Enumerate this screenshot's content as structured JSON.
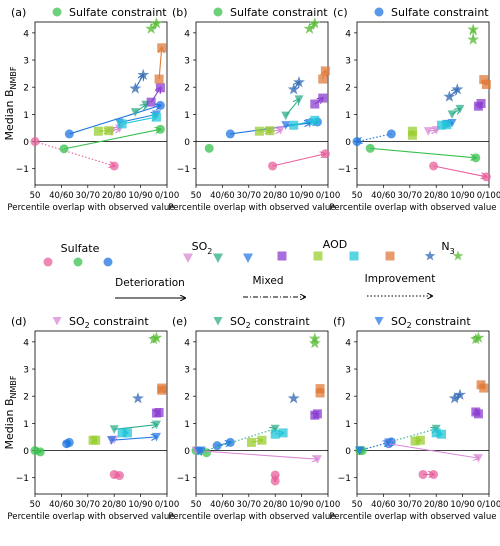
{
  "ylabel_main": "Median B",
  "ylabel_sub": "NMBF",
  "xlabel": "Percentile overlap with observed value",
  "xticks": [
    "50",
    "40/60",
    "30/70",
    "20/80",
    "10/90",
    "0/100"
  ],
  "yticks": [
    "4",
    "3",
    "2",
    "1",
    "0",
    "−1"
  ],
  "colors": {
    "sulfate": [
      "#e8609c",
      "#39c24f",
      "#1f77e0"
    ],
    "so2": [
      "#d98ad6",
      "#2eae8a",
      "#2b7be6"
    ],
    "aod": [
      "#8b3fcf",
      "#9acd32",
      "#22c6d8",
      "#e07b39"
    ],
    "n3": [
      "#3a6fb8",
      "#5fbf3f"
    ]
  },
  "legend": {
    "sulfate_label": "Sulfate",
    "so2_label": "SO",
    "so2_sub": "2",
    "aod_label": "AOD",
    "n3_label": "N",
    "n3_sub": "3",
    "deterioration": "Deterioration",
    "mixed": "Mixed",
    "improvement": "Improvement"
  },
  "chart_data": [
    {
      "label": "(a)",
      "title": "Sulfate constraint",
      "marker": "circle",
      "marker_color": "#39c24f",
      "type": "scatter",
      "ylim": [
        -1.6,
        4.4
      ],
      "xlim": [
        50,
        100
      ],
      "arrows": [
        {
          "kind": "circle",
          "color": "#e8609c",
          "x0": 50,
          "y0": 0,
          "x1": 80,
          "y1": -0.9,
          "style": "dotted"
        },
        {
          "kind": "circle",
          "color": "#39c24f",
          "x0": 61,
          "y0": -0.27,
          "x1": 97.5,
          "y1": 0.45,
          "style": "solid"
        },
        {
          "kind": "circle",
          "color": "#1f77e0",
          "x0": 63,
          "y0": 0.28,
          "x1": 97.5,
          "y1": 1.33,
          "style": "solid"
        },
        {
          "kind": "tri",
          "color": "#d98ad6",
          "x0": 79,
          "y0": 0.38,
          "x1": 82,
          "y1": 0.48,
          "style": "solid"
        },
        {
          "kind": "tri",
          "color": "#2eae8a",
          "x0": 88,
          "y0": 1.08,
          "x1": 92,
          "y1": 1.35,
          "style": "solid"
        },
        {
          "kind": "tri",
          "color": "#2b7be6",
          "x0": 82,
          "y0": 0.7,
          "x1": 96,
          "y1": 1.0,
          "style": "solid"
        },
        {
          "kind": "square",
          "color": "#8b3fcf",
          "x0": 94,
          "y0": 1.45,
          "x1": 97.5,
          "y1": 1.98,
          "style": "solid"
        },
        {
          "kind": "square",
          "color": "#9acd32",
          "x0": 74,
          "y0": 0.38,
          "x1": 78,
          "y1": 0.4,
          "style": "solid"
        },
        {
          "kind": "square",
          "color": "#22c6d8",
          "x0": 83,
          "y0": 0.65,
          "x1": 96,
          "y1": 0.9,
          "style": "solid"
        },
        {
          "kind": "square",
          "color": "#e07b39",
          "x0": 97,
          "y0": 2.3,
          "x1": 98,
          "y1": 3.45,
          "style": "solid"
        },
        {
          "kind": "star",
          "color": "#3a6fb8",
          "x0": 88,
          "y0": 1.95,
          "x1": 91,
          "y1": 2.45,
          "style": "solid"
        },
        {
          "kind": "star",
          "color": "#5fbf3f",
          "x0": 94,
          "y0": 4.15,
          "x1": 96,
          "y1": 4.35,
          "style": "solid"
        }
      ]
    },
    {
      "label": "(b)",
      "title": "Sulfate constraint",
      "marker": "circle",
      "marker_color": "#39c24f",
      "type": "scatter",
      "ylim": [
        -1.6,
        4.4
      ],
      "xlim": [
        50,
        100
      ],
      "arrows": [
        {
          "kind": "circle",
          "color": "#e8609c",
          "x0": 79,
          "y0": -0.9,
          "x1": 99,
          "y1": -0.45,
          "style": "solid"
        },
        {
          "kind": "circle",
          "color": "#39c24f",
          "x0": 55,
          "y0": -0.25,
          "x1": 55,
          "y1": -0.25,
          "style": "none"
        },
        {
          "kind": "circle",
          "color": "#1f77e0",
          "x0": 63,
          "y0": 0.28,
          "x1": 96,
          "y1": 0.72,
          "style": "solid"
        },
        {
          "kind": "tri",
          "color": "#d98ad6",
          "x0": 78,
          "y0": 0.38,
          "x1": 82,
          "y1": 0.42,
          "style": "solid"
        },
        {
          "kind": "tri",
          "color": "#2eae8a",
          "x0": 84,
          "y0": 0.95,
          "x1": 89,
          "y1": 1.55,
          "style": "solid"
        },
        {
          "kind": "tri",
          "color": "#2b7be6",
          "x0": 84,
          "y0": 0.6,
          "x1": 93,
          "y1": 0.68,
          "style": "solid"
        },
        {
          "kind": "square",
          "color": "#8b3fcf",
          "x0": 95,
          "y0": 1.38,
          "x1": 98,
          "y1": 1.6,
          "style": "solid"
        },
        {
          "kind": "square",
          "color": "#9acd32",
          "x0": 74,
          "y0": 0.38,
          "x1": 78,
          "y1": 0.4,
          "style": "solid"
        },
        {
          "kind": "square",
          "color": "#22c6d8",
          "x0": 87,
          "y0": 0.6,
          "x1": 95,
          "y1": 0.78,
          "style": "solid"
        },
        {
          "kind": "square",
          "color": "#e07b39",
          "x0": 98,
          "y0": 2.3,
          "x1": 99,
          "y1": 2.6,
          "style": "solid"
        },
        {
          "kind": "star",
          "color": "#3a6fb8",
          "x0": 87,
          "y0": 1.92,
          "x1": 89,
          "y1": 2.18,
          "style": "solid"
        },
        {
          "kind": "star",
          "color": "#5fbf3f",
          "x0": 93,
          "y0": 4.15,
          "x1": 95,
          "y1": 4.35,
          "style": "solid"
        }
      ]
    },
    {
      "label": "(c)",
      "title": "Sulfate constraint",
      "marker": "circle",
      "marker_color": "#1f77e0",
      "type": "scatter",
      "ylim": [
        -1.6,
        4.4
      ],
      "xlim": [
        50,
        100
      ],
      "arrows": [
        {
          "kind": "circle",
          "color": "#e8609c",
          "x0": 79,
          "y0": -0.9,
          "x1": 99,
          "y1": -1.3,
          "style": "solid"
        },
        {
          "kind": "circle",
          "color": "#39c24f",
          "x0": 55,
          "y0": -0.25,
          "x1": 95,
          "y1": -0.6,
          "style": "solid"
        },
        {
          "kind": "circle",
          "color": "#1f77e0",
          "x0": 63,
          "y0": 0.28,
          "x1": 50,
          "y1": 0.0,
          "style": "dotted"
        },
        {
          "kind": "tri",
          "color": "#d98ad6",
          "x0": 77,
          "y0": 0.38,
          "x1": 80,
          "y1": 0.42,
          "style": "solid"
        },
        {
          "kind": "tri",
          "color": "#2eae8a",
          "x0": 86,
          "y0": 1.0,
          "x1": 89,
          "y1": 1.2,
          "style": "solid"
        },
        {
          "kind": "tri",
          "color": "#2b7be6",
          "x0": 84,
          "y0": 0.65,
          "x1": 86,
          "y1": 0.68,
          "style": "solid"
        },
        {
          "kind": "square",
          "color": "#8b3fcf",
          "x0": 96,
          "y0": 1.3,
          "x1": 97,
          "y1": 1.4,
          "style": "solid"
        },
        {
          "kind": "square",
          "color": "#9acd32",
          "x0": 71,
          "y0": 0.23,
          "x1": 71,
          "y1": 0.38,
          "style": "solid"
        },
        {
          "kind": "square",
          "color": "#22c6d8",
          "x0": 82,
          "y0": 0.6,
          "x1": 84,
          "y1": 0.62,
          "style": "solid"
        },
        {
          "kind": "square",
          "color": "#e07b39",
          "x0": 98,
          "y0": 2.28,
          "x1": 99,
          "y1": 2.1,
          "style": "solid"
        },
        {
          "kind": "star",
          "color": "#3a6fb8",
          "x0": 85,
          "y0": 1.65,
          "x1": 88,
          "y1": 1.92,
          "style": "solid"
        },
        {
          "kind": "star",
          "color": "#5fbf3f",
          "x0": 94,
          "y0": 3.75,
          "x1": 94,
          "y1": 4.12,
          "style": "solid"
        }
      ]
    },
    {
      "label": "(d)",
      "title": "SO constraint",
      "title_sub": "2",
      "marker": "tri",
      "marker_color": "#d98ad6",
      "type": "scatter",
      "ylim": [
        -1.6,
        4.4
      ],
      "xlim": [
        50,
        100
      ],
      "arrows": [
        {
          "kind": "circle",
          "color": "#e8609c",
          "x0": 80,
          "y0": -0.88,
          "x1": 82,
          "y1": -0.92,
          "style": "solid"
        },
        {
          "kind": "circle",
          "color": "#39c24f",
          "x0": 50,
          "y0": 0.0,
          "x1": 52,
          "y1": -0.05,
          "style": "solid"
        },
        {
          "kind": "circle",
          "color": "#1f77e0",
          "x0": 62,
          "y0": 0.25,
          "x1": 63,
          "y1": 0.3,
          "style": "solid"
        },
        {
          "kind": "tri",
          "color": "#d98ad6",
          "x0": 79,
          "y0": 0.38,
          "x1": 80,
          "y1": 0.4,
          "style": "solid"
        },
        {
          "kind": "tri",
          "color": "#2eae8a",
          "x0": 80,
          "y0": 0.78,
          "x1": 96,
          "y1": 0.95,
          "style": "solid"
        },
        {
          "kind": "tri",
          "color": "#2b7be6",
          "x0": 79,
          "y0": 0.38,
          "x1": 96,
          "y1": 0.5,
          "style": "solid"
        },
        {
          "kind": "square",
          "color": "#8b3fcf",
          "x0": 96,
          "y0": 1.38,
          "x1": 97,
          "y1": 1.4,
          "style": "solid"
        },
        {
          "kind": "square",
          "color": "#9acd32",
          "x0": 72,
          "y0": 0.38,
          "x1": 73,
          "y1": 0.38,
          "style": "solid"
        },
        {
          "kind": "square",
          "color": "#22c6d8",
          "x0": 83,
          "y0": 0.65,
          "x1": 85,
          "y1": 0.65,
          "style": "solid"
        },
        {
          "kind": "square",
          "color": "#e07b39",
          "x0": 98,
          "y0": 2.22,
          "x1": 98,
          "y1": 2.3,
          "style": "solid"
        },
        {
          "kind": "star",
          "color": "#3a6fb8",
          "x0": 89,
          "y0": 1.92,
          "x1": 89,
          "y1": 1.92,
          "style": "none"
        },
        {
          "kind": "star",
          "color": "#5fbf3f",
          "x0": 95,
          "y0": 4.1,
          "x1": 96,
          "y1": 4.15,
          "style": "solid"
        }
      ]
    },
    {
      "label": "(e)",
      "title": "SO constraint",
      "title_sub": "2",
      "marker": "tri",
      "marker_color": "#2eae8a",
      "type": "scatter",
      "ylim": [
        -1.6,
        4.4
      ],
      "xlim": [
        50,
        100
      ],
      "arrows": [
        {
          "kind": "circle",
          "color": "#e8609c",
          "x0": 80,
          "y0": -0.9,
          "x1": 80,
          "y1": -1.12,
          "style": "solid"
        },
        {
          "kind": "circle",
          "color": "#39c24f",
          "x0": 54,
          "y0": -0.08,
          "x1": 50,
          "y1": 0.0,
          "style": "dotted"
        },
        {
          "kind": "circle",
          "color": "#1f77e0",
          "x0": 58,
          "y0": 0.18,
          "x1": 63,
          "y1": 0.3,
          "style": "solid"
        },
        {
          "kind": "tri",
          "color": "#d98ad6",
          "x0": 50,
          "y0": 0.0,
          "x1": 96,
          "y1": -0.32,
          "style": "solid"
        },
        {
          "kind": "tri",
          "color": "#2eae8a",
          "x0": 52,
          "y0": -0.05,
          "x1": 80,
          "y1": 0.8,
          "style": "dotted"
        },
        {
          "kind": "tri",
          "color": "#2b7be6",
          "x0": 51,
          "y0": -0.02,
          "x1": 52,
          "y1": 0.0,
          "style": "solid"
        },
        {
          "kind": "square",
          "color": "#8b3fcf",
          "x0": 95,
          "y0": 1.3,
          "x1": 96,
          "y1": 1.35,
          "style": "solid"
        },
        {
          "kind": "square",
          "color": "#9acd32",
          "x0": 71,
          "y0": 0.3,
          "x1": 75,
          "y1": 0.38,
          "style": "solid"
        },
        {
          "kind": "square",
          "color": "#22c6d8",
          "x0": 80,
          "y0": 0.6,
          "x1": 83,
          "y1": 0.65,
          "style": "solid"
        },
        {
          "kind": "square",
          "color": "#e07b39",
          "x0": 97,
          "y0": 2.12,
          "x1": 97,
          "y1": 2.28,
          "style": "solid"
        },
        {
          "kind": "star",
          "color": "#3a6fb8",
          "x0": 87,
          "y0": 1.92,
          "x1": 87,
          "y1": 1.92,
          "style": "none"
        },
        {
          "kind": "star",
          "color": "#5fbf3f",
          "x0": 95,
          "y0": 3.95,
          "x1": 95,
          "y1": 4.12,
          "style": "solid"
        }
      ]
    },
    {
      "label": "(f)",
      "title": "SO constraint",
      "title_sub": "2",
      "marker": "tri",
      "marker_color": "#2b7be6",
      "type": "scatter",
      "ylim": [
        -1.6,
        4.4
      ],
      "xlim": [
        50,
        100
      ],
      "arrows": [
        {
          "kind": "circle",
          "color": "#e8609c",
          "x0": 75,
          "y0": -0.88,
          "x1": 79,
          "y1": -0.88,
          "style": "solid"
        },
        {
          "kind": "circle",
          "color": "#39c24f",
          "x0": 51,
          "y0": 0.0,
          "x1": 52,
          "y1": 0.0,
          "style": "solid"
        },
        {
          "kind": "circle",
          "color": "#1f77e0",
          "x0": 62,
          "y0": 0.25,
          "x1": 63,
          "y1": 0.32,
          "style": "solid"
        },
        {
          "kind": "tri",
          "color": "#d98ad6",
          "x0": 62,
          "y0": 0.25,
          "x1": 96,
          "y1": -0.28,
          "style": "solid"
        },
        {
          "kind": "tri",
          "color": "#2eae8a",
          "x0": 51,
          "y0": 0.0,
          "x1": 80,
          "y1": 0.8,
          "style": "dotted"
        },
        {
          "kind": "tri",
          "color": "#2b7be6",
          "x0": 51,
          "y0": 0.0,
          "x1": 62,
          "y1": 0.3,
          "style": "dotted"
        },
        {
          "kind": "square",
          "color": "#8b3fcf",
          "x0": 95,
          "y0": 1.42,
          "x1": 96,
          "y1": 1.35,
          "style": "solid"
        },
        {
          "kind": "square",
          "color": "#9acd32",
          "x0": 72,
          "y0": 0.35,
          "x1": 74,
          "y1": 0.38,
          "style": "solid"
        },
        {
          "kind": "square",
          "color": "#22c6d8",
          "x0": 80,
          "y0": 0.65,
          "x1": 82,
          "y1": 0.6,
          "style": "solid"
        },
        {
          "kind": "square",
          "color": "#e07b39",
          "x0": 97,
          "y0": 2.42,
          "x1": 98,
          "y1": 2.3,
          "style": "solid"
        },
        {
          "kind": "star",
          "color": "#3a6fb8",
          "x0": 87,
          "y0": 1.92,
          "x1": 89,
          "y1": 2.05,
          "style": "solid"
        },
        {
          "kind": "star",
          "color": "#5fbf3f",
          "x0": 95,
          "y0": 4.1,
          "x1": 96,
          "y1": 4.15,
          "style": "solid"
        }
      ]
    }
  ]
}
